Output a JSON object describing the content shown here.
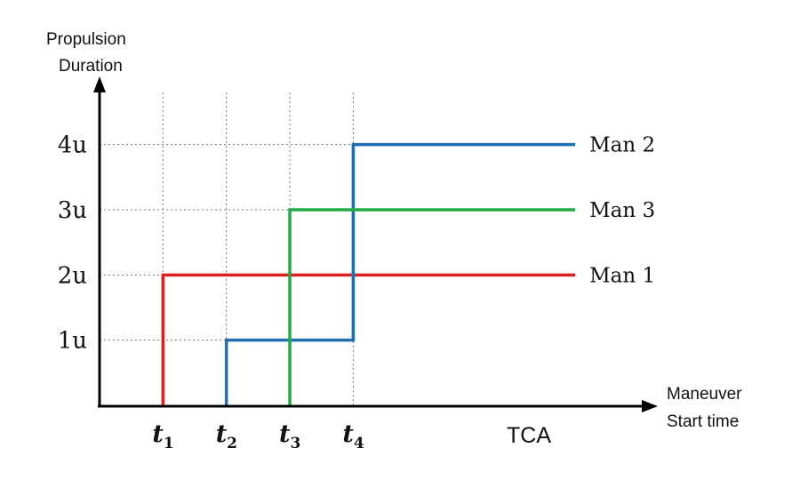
{
  "chart_data": {
    "type": "line",
    "step": true,
    "ylabel_lines": [
      "Propulsion",
      "Duration"
    ],
    "xlabel_lines": [
      "Maneuver",
      "Start time"
    ],
    "yticks": [
      {
        "value": 1,
        "label": "1u"
      },
      {
        "value": 2,
        "label": "2u"
      },
      {
        "value": 3,
        "label": "3u"
      },
      {
        "value": 4,
        "label": "4u"
      }
    ],
    "xticks": [
      {
        "value": 1,
        "main": "t",
        "sub": "1"
      },
      {
        "value": 2,
        "main": "t",
        "sub": "2"
      },
      {
        "value": 3,
        "main": "t",
        "sub": "3"
      },
      {
        "value": 4,
        "main": "t",
        "sub": "4"
      }
    ],
    "tca_label": "TCA",
    "tca_x": 7,
    "xlim": [
      0,
      8.55
    ],
    "ylim": [
      0,
      4.8
    ],
    "grid": "dotted",
    "series": [
      {
        "name": "Man 1",
        "color": "#e02020",
        "points": [
          [
            1,
            0
          ],
          [
            1,
            2
          ],
          [
            7.5,
            2
          ]
        ]
      },
      {
        "name": "Man 2",
        "color": "#1f6fb5",
        "points": [
          [
            2,
            0
          ],
          [
            2,
            1
          ],
          [
            4,
            1
          ],
          [
            4,
            4
          ],
          [
            7.5,
            4
          ]
        ]
      },
      {
        "name": "Man 3",
        "color": "#22aa44",
        "points": [
          [
            3,
            0
          ],
          [
            3,
            3
          ],
          [
            7.5,
            3
          ]
        ]
      }
    ]
  }
}
